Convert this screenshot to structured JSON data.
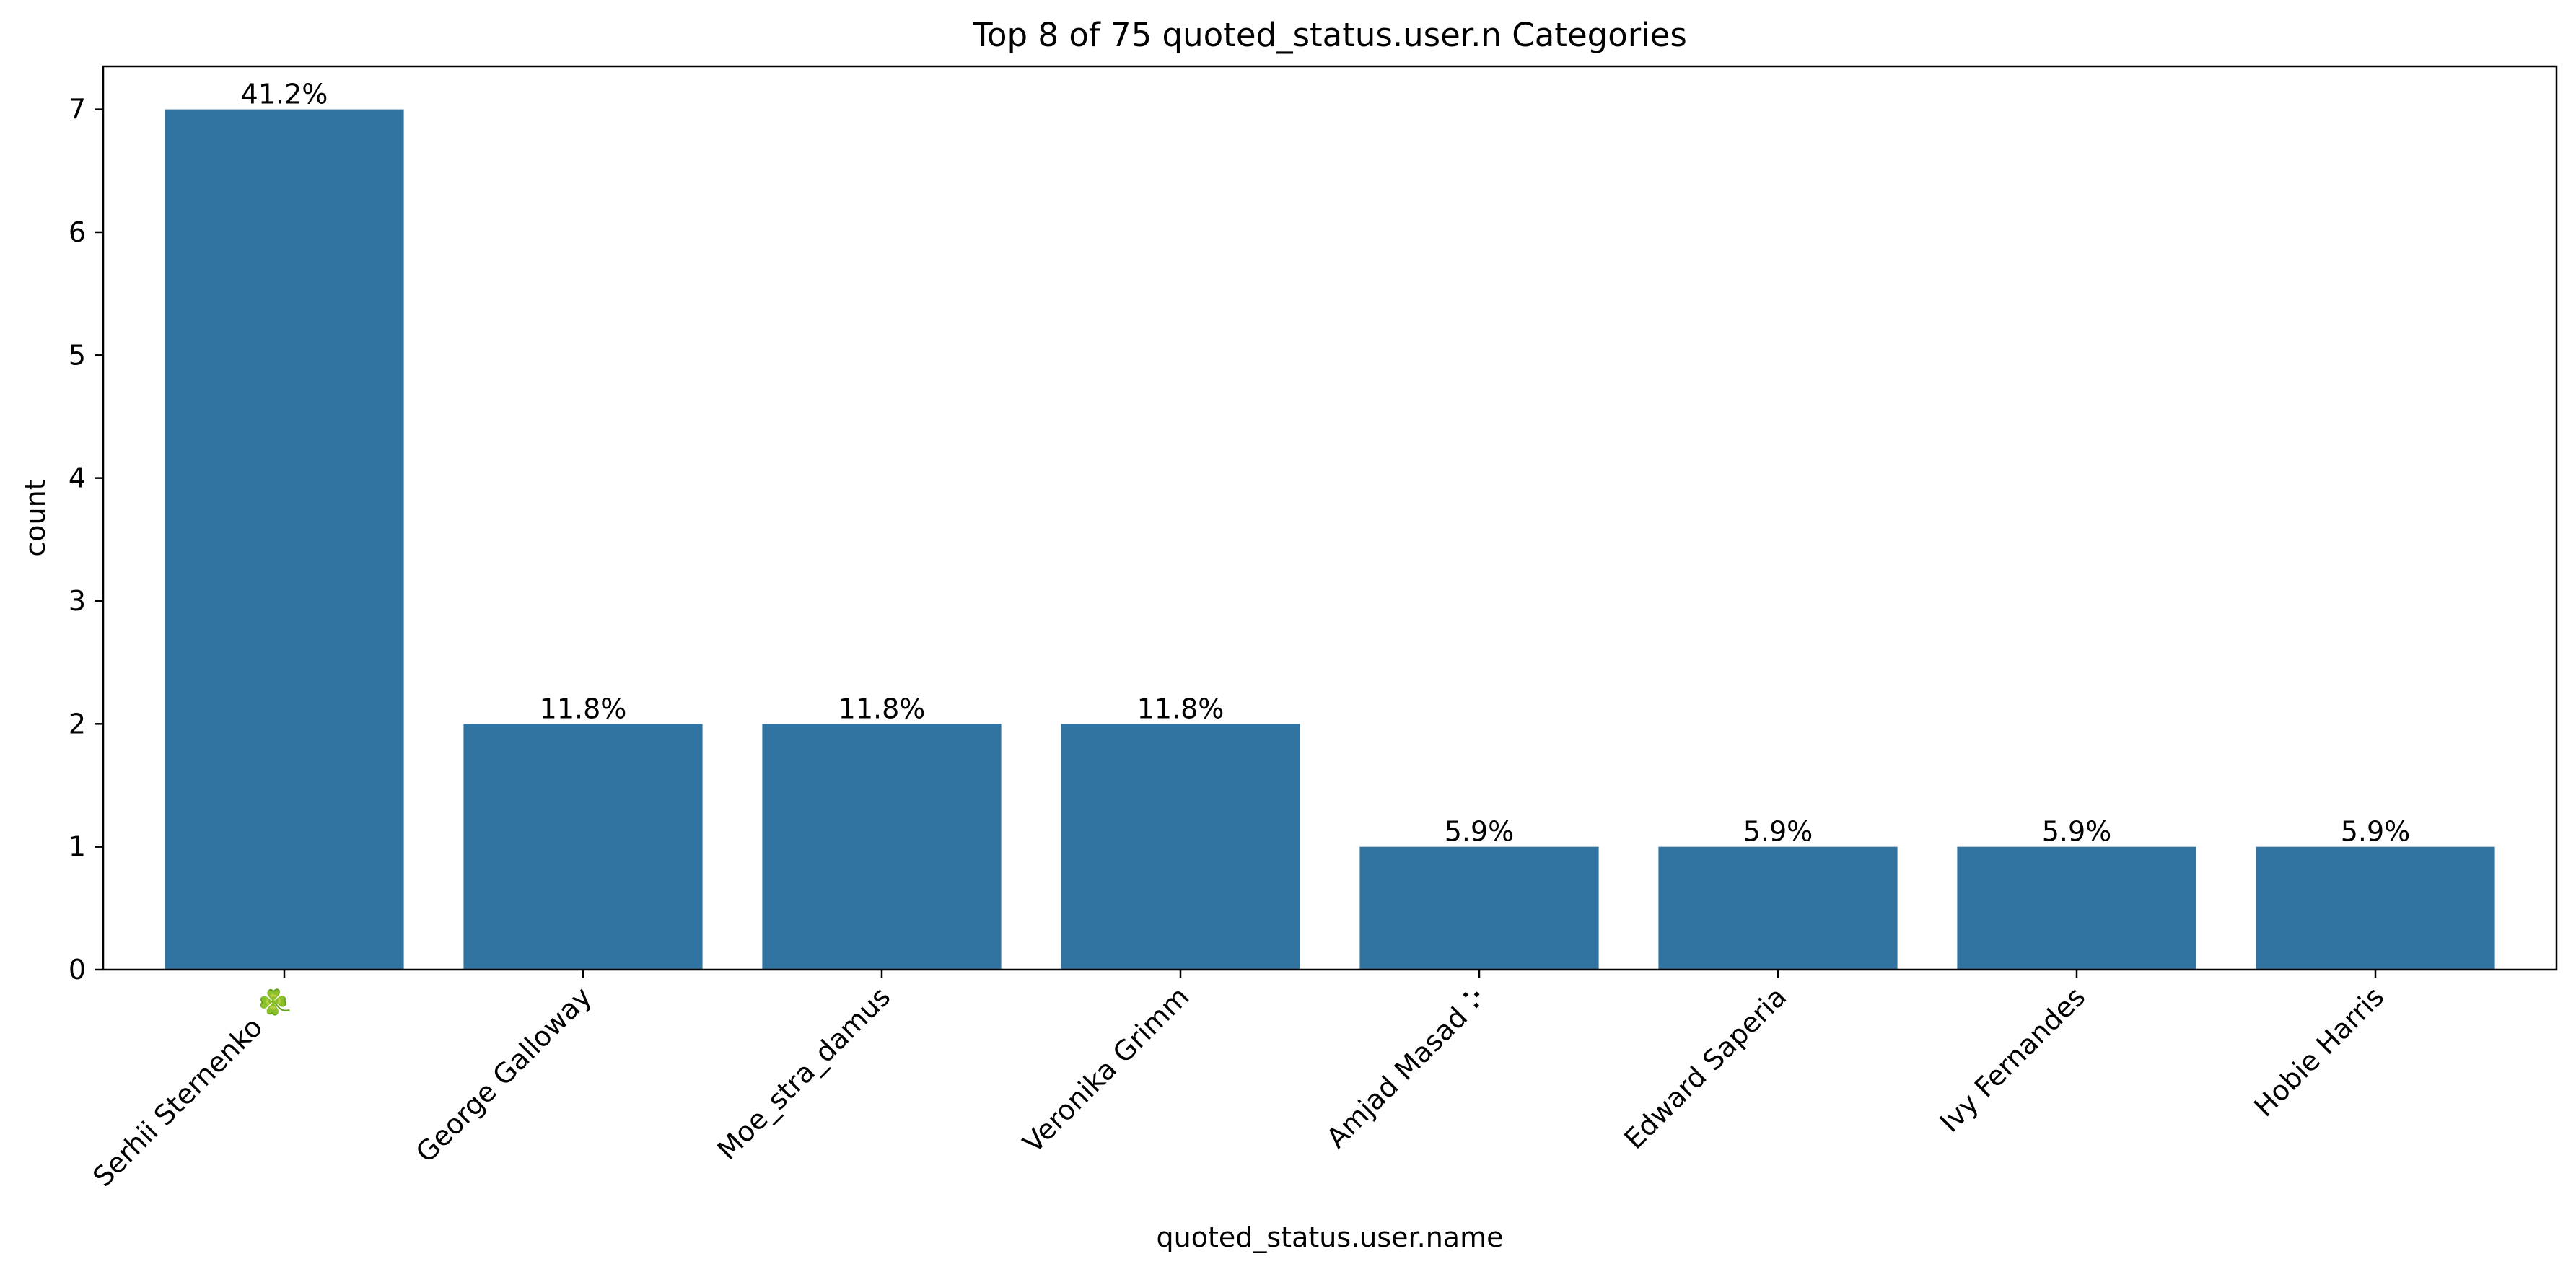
{
  "chart_data": {
    "type": "bar",
    "title": "Top 8 of 75 quoted_status.user.n Categories",
    "xlabel": "quoted_status.user.name",
    "ylabel": "count",
    "categories": [
      "Serhii Sternenko 🍀",
      "George Galloway",
      "Moe_stra_damus",
      "Veronika Grimm",
      "Amjad Masad ⠕",
      "Edward Saperia",
      "Ivy Fernandes",
      "Hobie Harris"
    ],
    "values": [
      7,
      2,
      2,
      2,
      1,
      1,
      1,
      1
    ],
    "data_labels": [
      "41.2%",
      "11.8%",
      "11.8%",
      "11.8%",
      "5.9%",
      "5.9%",
      "5.9%",
      "5.9%"
    ],
    "yticks": [
      0,
      1,
      2,
      3,
      4,
      5,
      6,
      7
    ],
    "ylim": [
      0,
      7.35
    ],
    "grid": false,
    "bar_color": "#3274a1"
  }
}
